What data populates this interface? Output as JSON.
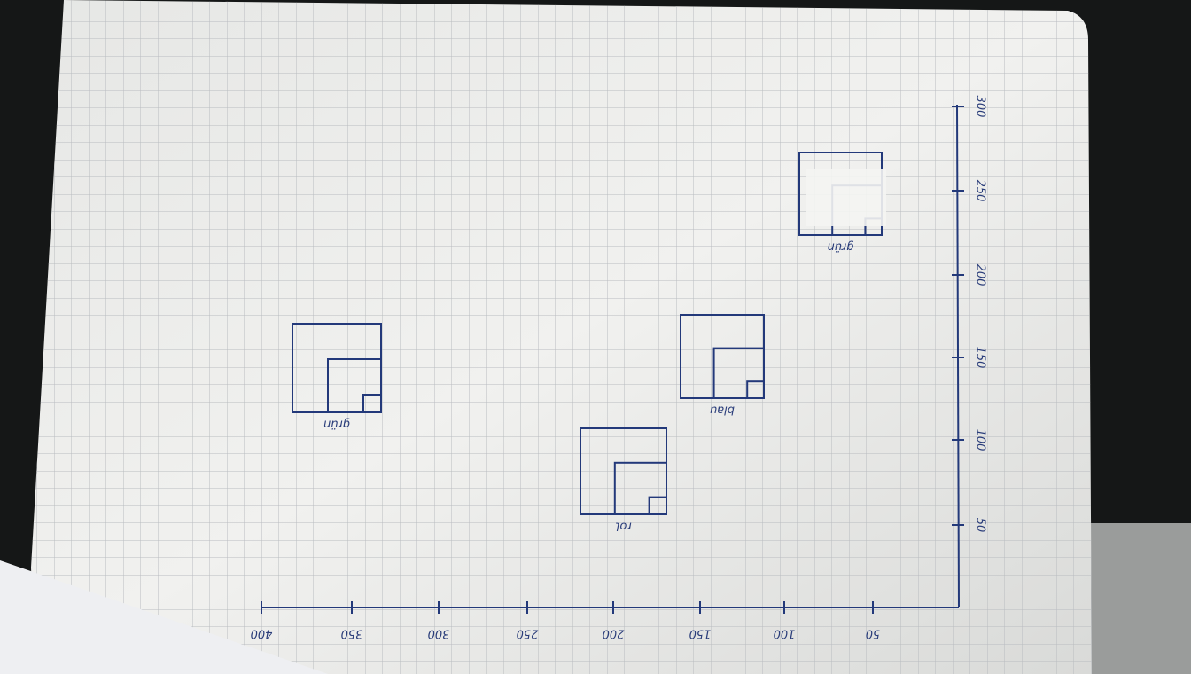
{
  "horizontal_axis": {
    "labels": [
      "400",
      "350",
      "300",
      "250",
      "200",
      "150",
      "100",
      "50"
    ]
  },
  "vertical_axis": {
    "labels": [
      "50",
      "100",
      "150",
      "200",
      "250",
      "300"
    ]
  },
  "boxes": [
    {
      "label": "rot"
    },
    {
      "label": "blau"
    },
    {
      "label": "grün"
    },
    {
      "label": "grün"
    }
  ]
}
